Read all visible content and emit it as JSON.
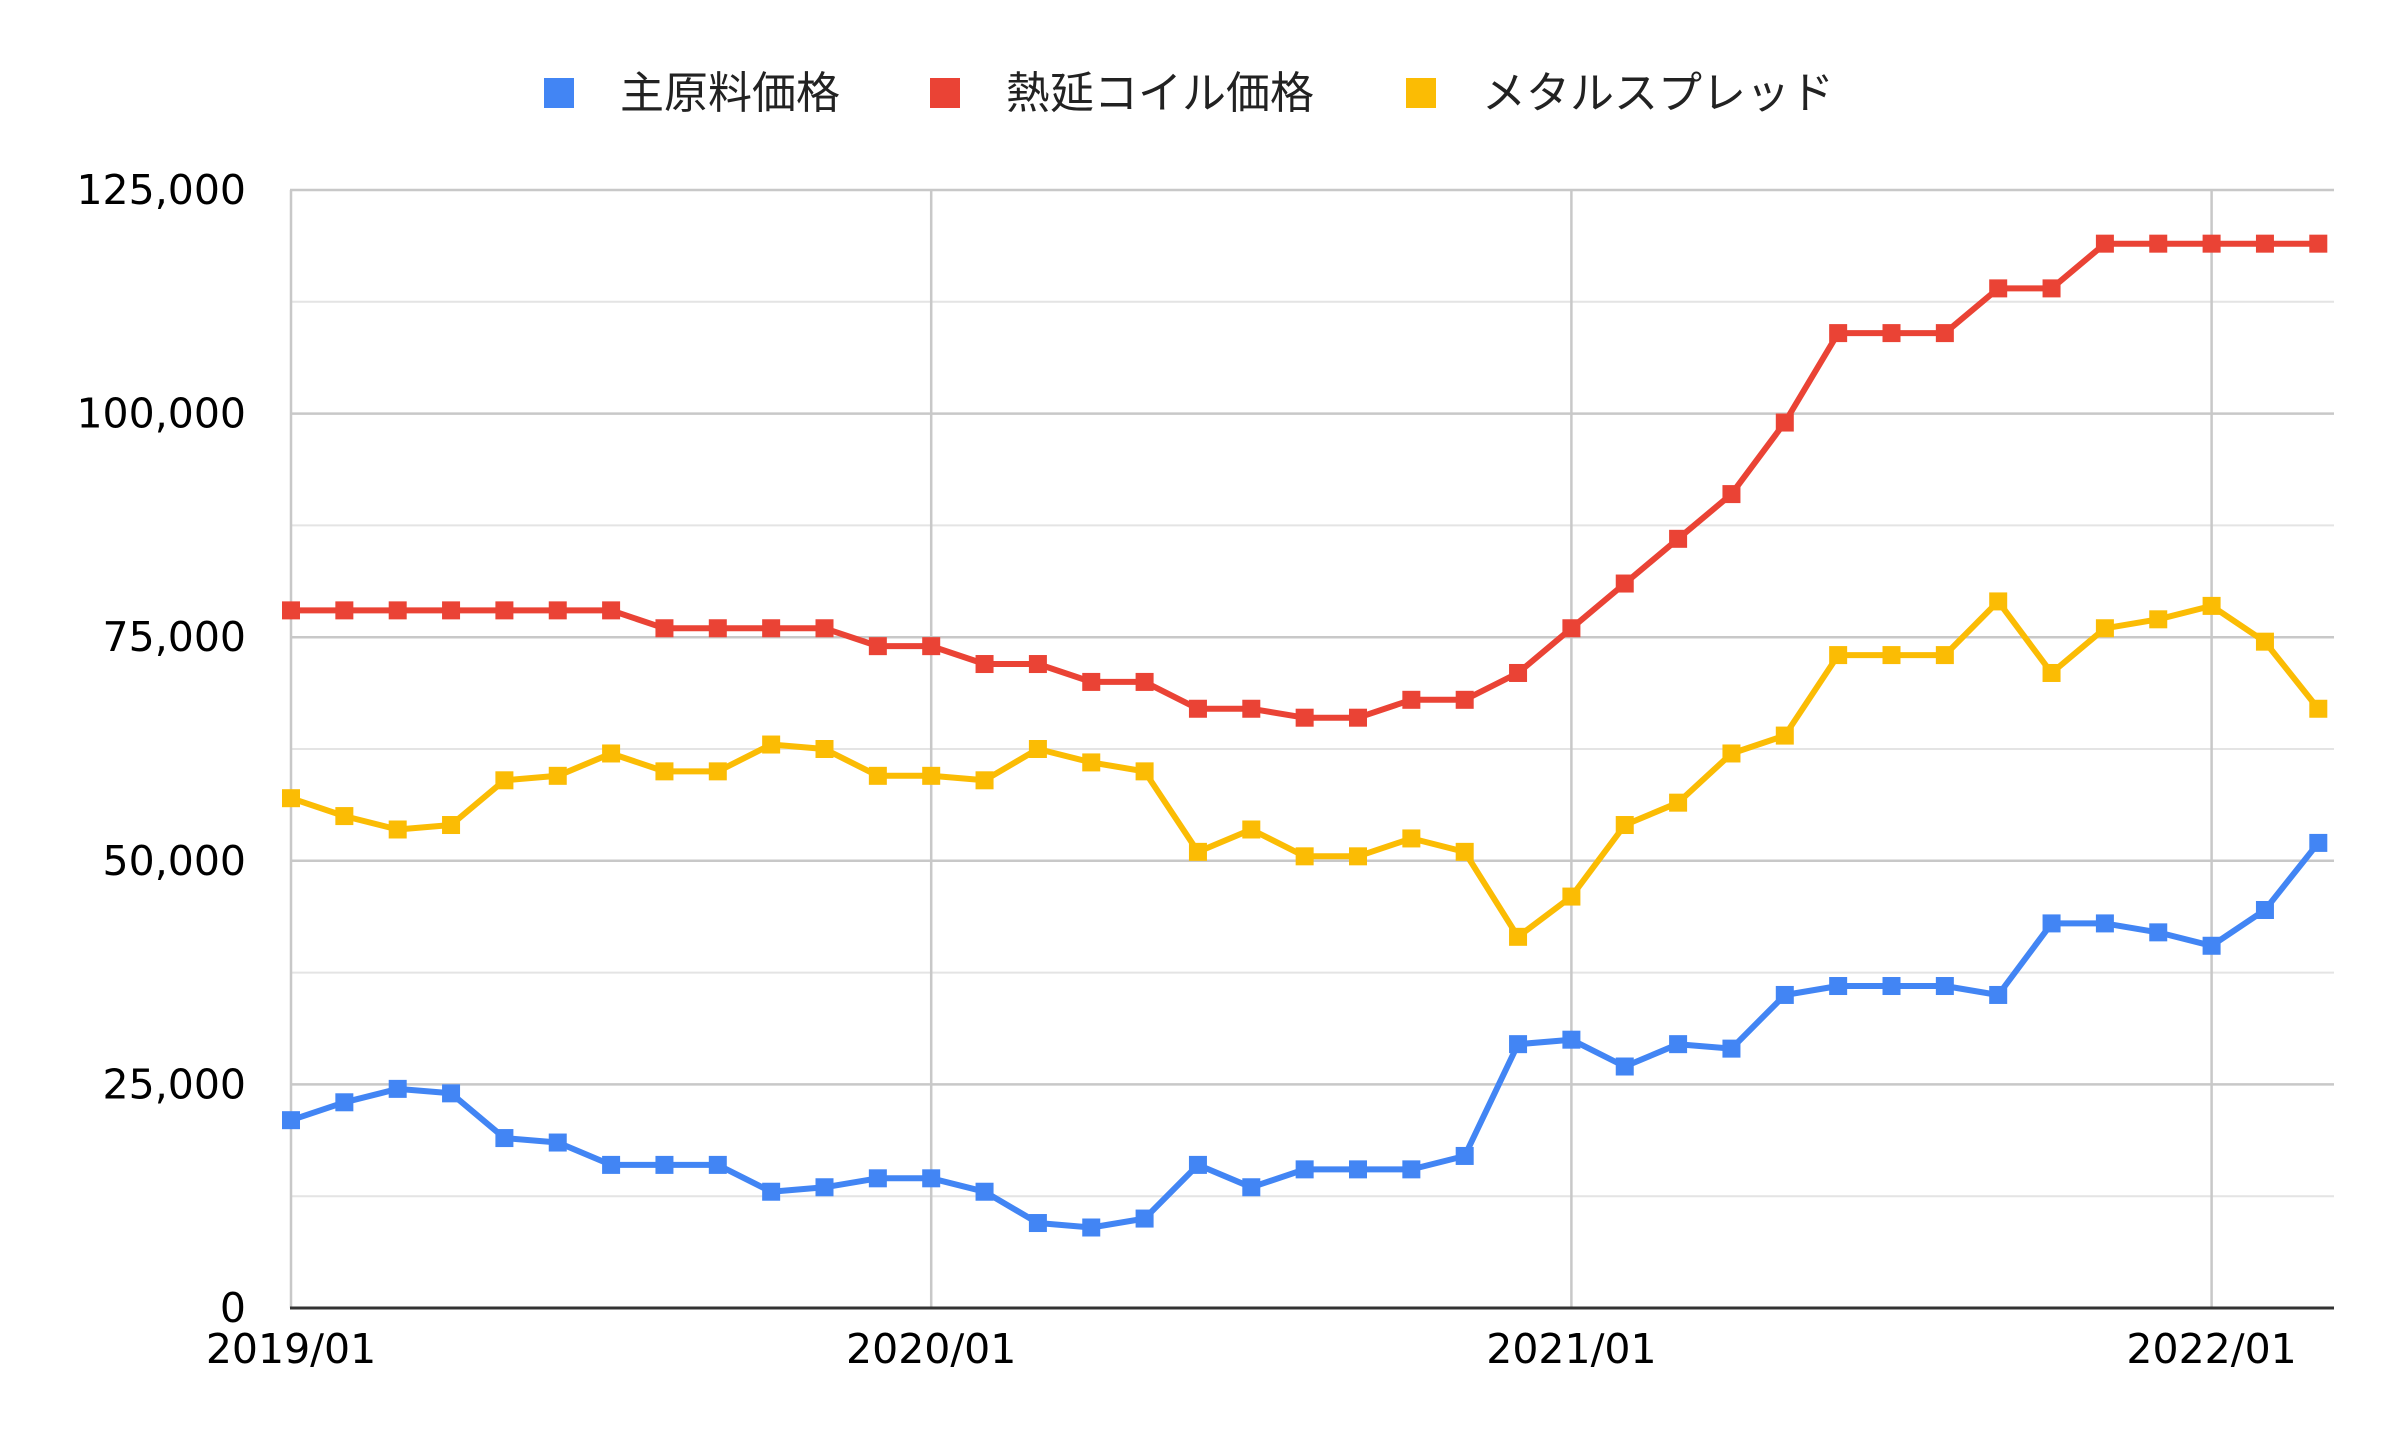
{
  "chart_data": {
    "type": "line",
    "title": "",
    "xlabel": "",
    "ylabel": "",
    "ylim": [
      0,
      125000
    ],
    "y_ticks": [
      0,
      25000,
      50000,
      75000,
      100000,
      125000
    ],
    "y_tick_labels": [
      "0",
      "25,000",
      "50,000",
      "75,000",
      "100,000",
      "125,000"
    ],
    "x_tick_labels": [
      "2019/01",
      "2020/01",
      "2021/01",
      "2022/01"
    ],
    "x": [
      "2019/01",
      "2019/02",
      "2019/03",
      "2019/04",
      "2019/05",
      "2019/06",
      "2019/07",
      "2019/08",
      "2019/09",
      "2019/10",
      "2019/11",
      "2019/12",
      "2020/01",
      "2020/02",
      "2020/03",
      "2020/04",
      "2020/05",
      "2020/06",
      "2020/07",
      "2020/08",
      "2020/09",
      "2020/10",
      "2020/11",
      "2020/12",
      "2021/01",
      "2021/02",
      "2021/03",
      "2021/04",
      "2021/05",
      "2021/06",
      "2021/07",
      "2021/08",
      "2021/09",
      "2021/10",
      "2021/11",
      "2021/12",
      "2022/01",
      "2022/02",
      "2022/03"
    ],
    "grid": true,
    "legend_position": "top",
    "series": [
      {
        "name": "主原料価格",
        "color": "#4285F4",
        "values": [
          21000,
          23000,
          24500,
          24000,
          19000,
          18500,
          16000,
          16000,
          16000,
          13000,
          13500,
          14500,
          14500,
          13000,
          9500,
          9000,
          10000,
          16000,
          13500,
          15500,
          15500,
          15500,
          17000,
          29500,
          30000,
          27000,
          29500,
          29000,
          35000,
          36000,
          36000,
          36000,
          35000,
          43000,
          43000,
          42000,
          40500,
          44500,
          52000
        ]
      },
      {
        "name": "熱延コイル価格",
        "color": "#EA4335",
        "values": [
          78000,
          78000,
          78000,
          78000,
          78000,
          78000,
          78000,
          76000,
          76000,
          76000,
          76000,
          74000,
          74000,
          72000,
          72000,
          70000,
          70000,
          67000,
          67000,
          66000,
          66000,
          68000,
          68000,
          71000,
          76000,
          81000,
          86000,
          91000,
          99000,
          109000,
          109000,
          109000,
          114000,
          114000,
          119000,
          119000,
          119000,
          119000,
          119000
        ]
      },
      {
        "name": "メタルスプレッド",
        "color": "#FBBC04",
        "values": [
          57000,
          55000,
          53500,
          54000,
          59000,
          59500,
          62000,
          60000,
          60000,
          63000,
          62500,
          59500,
          59500,
          59000,
          62500,
          61000,
          60000,
          51000,
          53500,
          50500,
          50500,
          52500,
          51000,
          41500,
          46000,
          54000,
          56500,
          62000,
          64000,
          73000,
          73000,
          73000,
          79000,
          71000,
          76000,
          77000,
          78500,
          74500,
          67000
        ]
      }
    ]
  }
}
